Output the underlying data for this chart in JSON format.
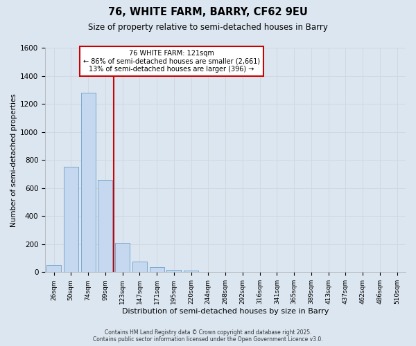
{
  "title_line1": "76, WHITE FARM, BARRY, CF62 9EU",
  "title_line2": "Size of property relative to semi-detached houses in Barry",
  "xlabel": "Distribution of semi-detached houses by size in Barry",
  "ylabel": "Number of semi-detached properties",
  "bar_labels": [
    "26sqm",
    "50sqm",
    "74sqm",
    "99sqm",
    "123sqm",
    "147sqm",
    "171sqm",
    "195sqm",
    "220sqm",
    "244sqm",
    "268sqm",
    "292sqm",
    "316sqm",
    "341sqm",
    "365sqm",
    "389sqm",
    "413sqm",
    "437sqm",
    "462sqm",
    "486sqm",
    "510sqm"
  ],
  "bar_values": [
    50,
    750,
    1280,
    660,
    210,
    75,
    35,
    15,
    10,
    0,
    0,
    0,
    0,
    0,
    0,
    0,
    0,
    0,
    0,
    0,
    0
  ],
  "bar_color": "#c5d8ef",
  "bar_edge_color": "#6aa0c8",
  "property_line_x": 4.0,
  "annotation_line1": "76 WHITE FARM: 121sqm",
  "annotation_line2": "← 86% of semi-detached houses are smaller (2,661)",
  "annotation_line3": "13% of semi-detached houses are larger (396) →",
  "annotation_box_color": "#ffffff",
  "annotation_box_edge_color": "#cc0000",
  "property_line_color": "#cc0000",
  "ylim": [
    0,
    1600
  ],
  "yticks": [
    0,
    200,
    400,
    600,
    800,
    1000,
    1200,
    1400,
    1600
  ],
  "grid_color": "#d0d8e0",
  "background_color": "#dce6f0",
  "footer_line1": "Contains HM Land Registry data © Crown copyright and database right 2025.",
  "footer_line2": "Contains public sector information licensed under the Open Government Licence v3.0."
}
